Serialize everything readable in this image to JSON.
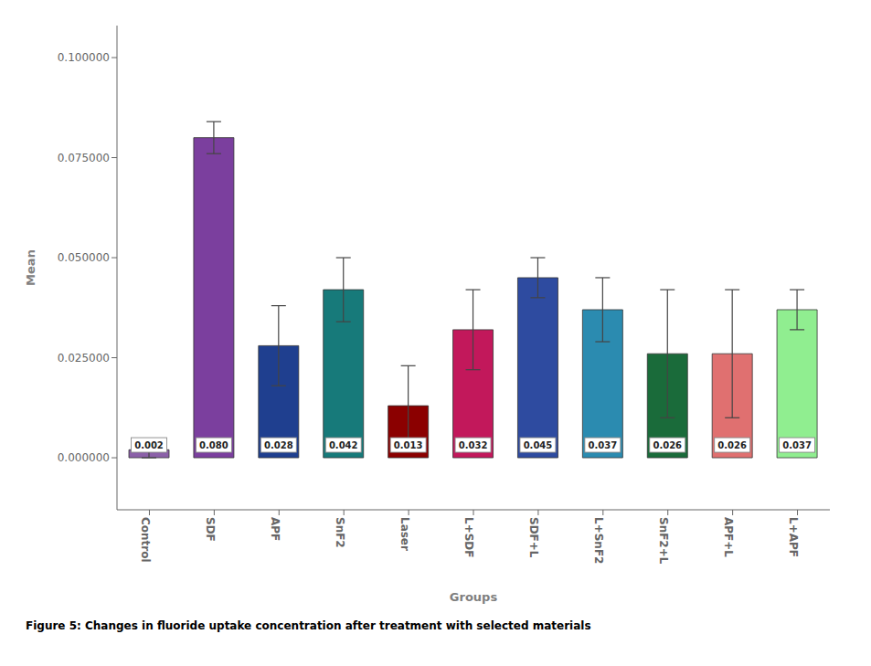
{
  "chart_data": {
    "type": "bar",
    "caption": "Figure 5: Changes in fluoride uptake concentration after treatment with selected materials",
    "xlabel": "Groups",
    "ylabel": "Mean",
    "categories": [
      "Control",
      "SDF",
      "APF",
      "SnF2",
      "Laser",
      "L+SDF",
      "SDF+L",
      "L+SnF2",
      "SnF2+L",
      "APF+L",
      "L+APF"
    ],
    "values": [
      0.002,
      0.08,
      0.028,
      0.042,
      0.013,
      0.032,
      0.045,
      0.037,
      0.026,
      0.026,
      0.037
    ],
    "value_labels": [
      "0.002",
      "0.080",
      "0.028",
      "0.042",
      "0.013",
      "0.032",
      "0.045",
      "0.037",
      "0.026",
      "0.026",
      "0.037"
    ],
    "errors": [
      0.002,
      0.004,
      0.01,
      0.008,
      0.01,
      0.01,
      0.005,
      0.008,
      0.016,
      0.016,
      0.005
    ],
    "colors": [
      "#8B60A8",
      "#7B3F9E",
      "#1F3F8F",
      "#177A7A",
      "#8B0000",
      "#C2185B",
      "#2E4BA0",
      "#2B8BB0",
      "#1A6B3A",
      "#E07070",
      "#90EE90"
    ],
    "ylim": [
      -0.013,
      0.108
    ],
    "yticks": [
      {
        "value": 0,
        "label": "0.000000"
      },
      {
        "value": 0.025,
        "label": "0.025000"
      },
      {
        "value": 0.05,
        "label": "0.050000"
      },
      {
        "value": 0.075,
        "label": "0.075000"
      },
      {
        "value": 0.1,
        "label": "0.100000"
      }
    ],
    "data_labels": true,
    "grid": false
  }
}
